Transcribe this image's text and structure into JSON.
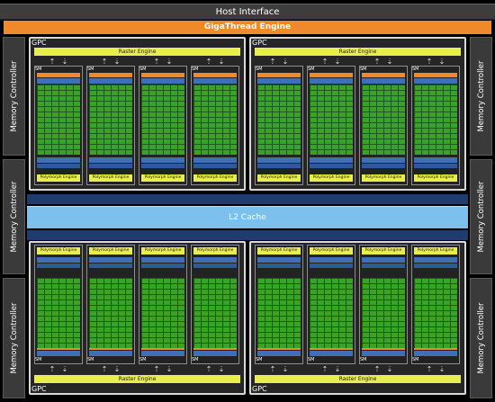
{
  "host_interface": "Host Interface",
  "gigathread_engine": "GigaThread Engine",
  "memory_controller_label": "Memory Controller",
  "gpc_label": "GPC",
  "raster_engine_label": "Raster Engine",
  "sm_label": "SM",
  "polymorph_engine_label": "Polymorph Engine",
  "l2_cache_label": "L2 Cache",
  "colors": {
    "gigathread": "#f0892a",
    "raster_poly": "#e8ef4a",
    "cores": "#3aa327",
    "l2_cache": "#7cc0ee",
    "bus": "#1e3c6e"
  }
}
